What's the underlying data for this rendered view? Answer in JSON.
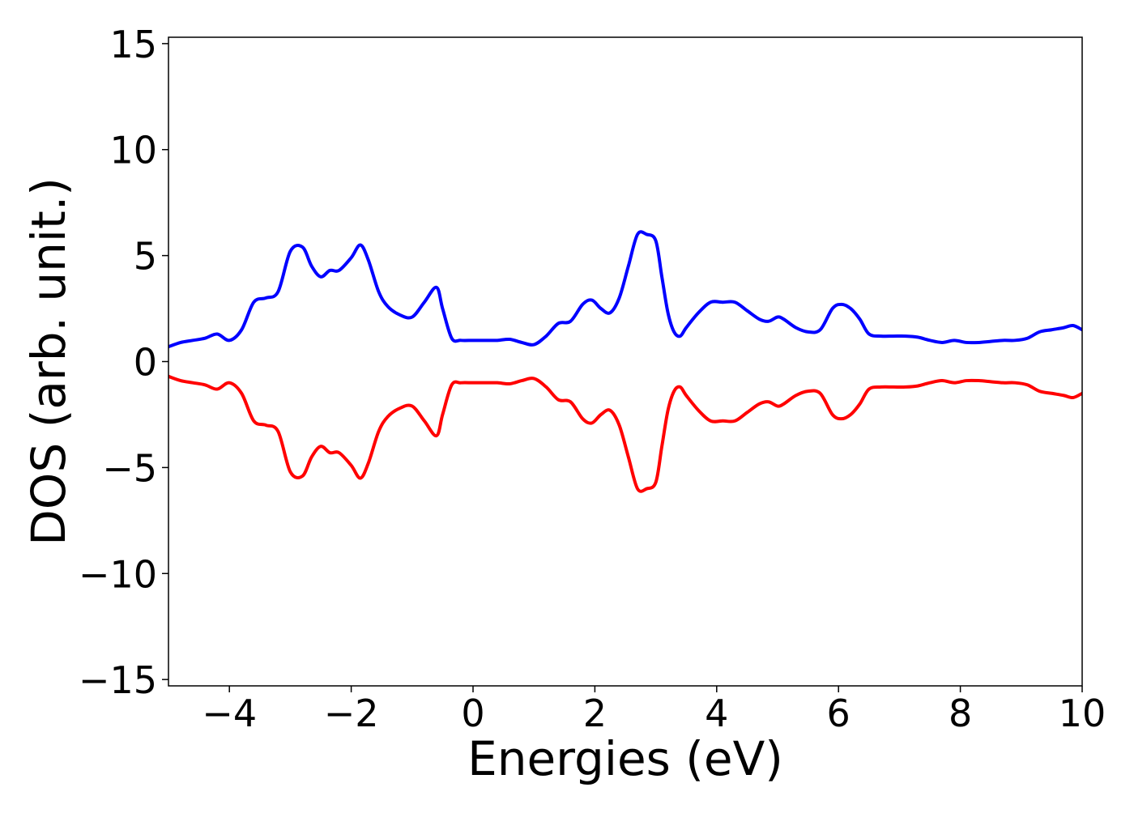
{
  "chart_data": {
    "type": "line",
    "title": "",
    "xlabel": "Energies (eV)",
    "ylabel": "DOS (arb. unit.)",
    "xlim": [
      -5,
      10
    ],
    "ylim": [
      -15.3,
      15.3
    ],
    "xticks": [
      -4,
      -2,
      0,
      2,
      4,
      6,
      8,
      10
    ],
    "xtick_labels": [
      "−4",
      "−2",
      "0",
      "2",
      "4",
      "6",
      "8",
      "10"
    ],
    "yticks": [
      -15,
      -10,
      -5,
      0,
      5,
      10,
      15
    ],
    "ytick_labels": [
      "−15",
      "−10",
      "−5",
      "0",
      "5",
      "10",
      "15"
    ],
    "grid": false,
    "legend": "none",
    "colors": {
      "spin_up": "#0000ff",
      "spin_down": "#ff0000",
      "frame": "#000000"
    },
    "x": [
      -5.0,
      -4.8,
      -4.6,
      -4.4,
      -4.2,
      -4.0,
      -3.8,
      -3.6,
      -3.4,
      -3.2,
      -3.0,
      -2.8,
      -2.65,
      -2.5,
      -2.35,
      -2.2,
      -2.0,
      -1.85,
      -1.72,
      -1.55,
      -1.4,
      -1.2,
      -1.0,
      -0.8,
      -0.6,
      -0.5,
      -0.35,
      -0.2,
      0.0,
      0.2,
      0.4,
      0.6,
      0.8,
      1.0,
      1.2,
      1.4,
      1.6,
      1.8,
      1.95,
      2.1,
      2.25,
      2.4,
      2.55,
      2.7,
      2.85,
      3.0,
      3.1,
      3.2,
      3.3,
      3.4,
      3.5,
      3.7,
      3.9,
      4.1,
      4.3,
      4.5,
      4.7,
      4.85,
      5.0,
      5.1,
      5.3,
      5.5,
      5.7,
      5.9,
      6.05,
      6.2,
      6.35,
      6.5,
      6.7,
      6.9,
      7.1,
      7.3,
      7.5,
      7.7,
      7.9,
      8.1,
      8.3,
      8.5,
      8.7,
      8.9,
      9.1,
      9.3,
      9.5,
      9.7,
      9.85,
      10.0
    ],
    "series": [
      {
        "values": [
          0.7,
          0.9,
          1.0,
          1.1,
          1.3,
          1.0,
          1.5,
          2.8,
          3.0,
          3.3,
          5.2,
          5.4,
          4.5,
          4.0,
          4.3,
          4.3,
          4.9,
          5.5,
          4.8,
          3.3,
          2.6,
          2.2,
          2.1,
          2.8,
          3.5,
          2.5,
          1.1,
          1.0,
          1.0,
          1.0,
          1.0,
          1.05,
          0.9,
          0.8,
          1.2,
          1.8,
          1.9,
          2.7,
          2.9,
          2.5,
          2.3,
          3.0,
          4.5,
          6.0,
          6.0,
          5.7,
          4.0,
          2.3,
          1.4,
          1.2,
          1.6,
          2.3,
          2.8,
          2.8,
          2.8,
          2.4,
          2.0,
          1.9,
          2.1,
          2.0,
          1.6,
          1.4,
          1.5,
          2.5,
          2.7,
          2.5,
          2.0,
          1.3,
          1.2,
          1.2,
          1.2,
          1.15,
          1.0,
          0.9,
          1.0,
          0.9,
          0.9,
          0.95,
          1.0,
          1.0,
          1.1,
          1.4,
          1.5,
          1.6,
          1.7,
          1.5
        ]
      },
      {
        "values": [
          -0.7,
          -0.9,
          -1.0,
          -1.1,
          -1.3,
          -1.0,
          -1.5,
          -2.8,
          -3.0,
          -3.3,
          -5.2,
          -5.4,
          -4.5,
          -4.0,
          -4.3,
          -4.3,
          -4.9,
          -5.5,
          -4.8,
          -3.3,
          -2.6,
          -2.2,
          -2.1,
          -2.8,
          -3.5,
          -2.5,
          -1.1,
          -1.0,
          -1.0,
          -1.0,
          -1.0,
          -1.05,
          -0.9,
          -0.8,
          -1.2,
          -1.8,
          -1.9,
          -2.7,
          -2.9,
          -2.5,
          -2.3,
          -3.0,
          -4.5,
          -6.0,
          -6.0,
          -5.7,
          -4.0,
          -2.3,
          -1.4,
          -1.2,
          -1.6,
          -2.3,
          -2.8,
          -2.8,
          -2.8,
          -2.4,
          -2.0,
          -1.9,
          -2.1,
          -2.0,
          -1.6,
          -1.4,
          -1.5,
          -2.5,
          -2.7,
          -2.5,
          -2.0,
          -1.3,
          -1.2,
          -1.2,
          -1.2,
          -1.15,
          -1.0,
          -0.9,
          -1.0,
          -0.9,
          -0.9,
          -0.95,
          -1.0,
          -1.0,
          -1.1,
          -1.4,
          -1.5,
          -1.6,
          -1.7,
          -1.5
        ]
      }
    ]
  }
}
